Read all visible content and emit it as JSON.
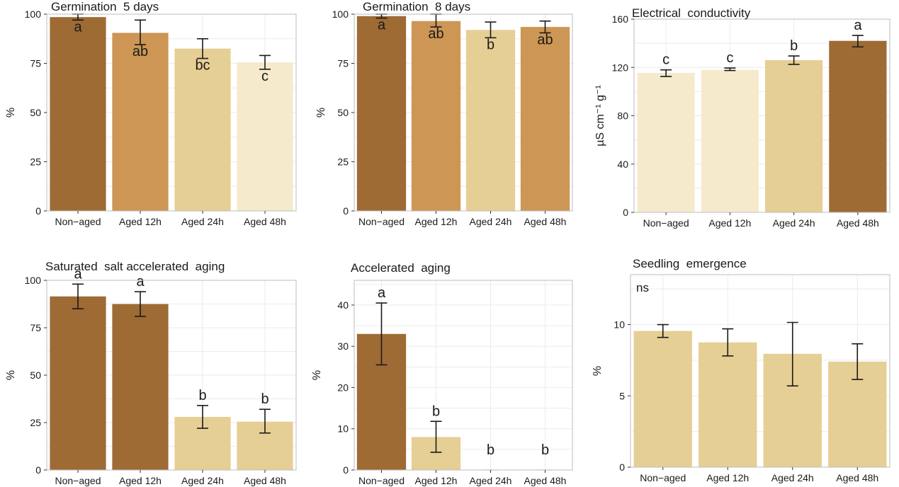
{
  "chart_data": [
    {
      "type": "bar",
      "title": "Germination  5 days",
      "xlabel": "",
      "ylabel": "%",
      "ylim": [
        0,
        100
      ],
      "yticks": [
        "0",
        "25",
        "50",
        "75",
        "100"
      ],
      "categories": [
        "Non−aged",
        "Aged 12h",
        "Aged 24h",
        "Aged 48h"
      ],
      "values": [
        98.5,
        90.5,
        82.5,
        75.5
      ],
      "errors": [
        [
          97,
          100
        ],
        [
          84.5,
          97
        ],
        [
          77.5,
          87.5
        ],
        [
          72,
          79
        ]
      ],
      "letters": [
        "a",
        "ab",
        "bc",
        "c"
      ],
      "colors": [
        "#9e6b35",
        "#cd9655",
        "#e6cf95",
        "#f6eacd"
      ]
    },
    {
      "type": "bar",
      "title": "Germination  8 days",
      "xlabel": "",
      "ylabel": "%",
      "ylim": [
        0,
        100
      ],
      "yticks": [
        "0",
        "25",
        "50",
        "75",
        "100"
      ],
      "categories": [
        "Non−aged",
        "Aged 12h",
        "Aged 24h",
        "Aged 48h"
      ],
      "values": [
        99,
        96.5,
        92,
        93.5
      ],
      "errors": [
        [
          98,
          100
        ],
        [
          93.5,
          100
        ],
        [
          88,
          96
        ],
        [
          90.5,
          96.5
        ]
      ],
      "letters": [
        "a",
        "ab",
        "b",
        "ab"
      ],
      "colors": [
        "#9e6b35",
        "#cd9655",
        "#e6cf95",
        "#cd9655"
      ]
    },
    {
      "type": "bar",
      "title": "Electrical  conductivity",
      "xlabel": "",
      "ylabel": "µS cm⁻¹ g⁻¹",
      "ylim": [
        0,
        160
      ],
      "yticks": [
        "0",
        "40",
        "80",
        "120",
        "160"
      ],
      "categories": [
        "Non−aged",
        "Aged 12h",
        "Aged 24h",
        "Aged 48h"
      ],
      "values": [
        115.5,
        118,
        126,
        142
      ],
      "errors": [
        [
          112.5,
          118
        ],
        [
          117.5,
          119.5
        ],
        [
          122.5,
          129.5
        ],
        [
          137,
          146.5
        ]
      ],
      "letters": [
        "c",
        "c",
        "b",
        "a"
      ],
      "colors": [
        "#f6eacd",
        "#f6eacd",
        "#e6cf95",
        "#9e6b35"
      ]
    },
    {
      "type": "bar",
      "title": "Saturated  salt accelerated  aging",
      "xlabel": "",
      "ylabel": "%",
      "ylim": [
        0,
        100
      ],
      "yticks": [
        "0",
        "25",
        "50",
        "75",
        "100"
      ],
      "categories": [
        "Non−aged",
        "Aged 12h",
        "Aged 24h",
        "Aged 48h"
      ],
      "values": [
        91.5,
        87.5,
        28,
        25.5
      ],
      "errors": [
        [
          85,
          98
        ],
        [
          81,
          94
        ],
        [
          22,
          34
        ],
        [
          19.5,
          32
        ]
      ],
      "letters": [
        "a",
        "a",
        "b",
        "b"
      ],
      "colors": [
        "#9e6b35",
        "#9e6b35",
        "#e6cf95",
        "#e6cf95"
      ]
    },
    {
      "type": "bar",
      "title": "Accelerated  aging",
      "xlabel": "",
      "ylabel": "%",
      "ylim": [
        0,
        46
      ],
      "yticks": [
        "0",
        "10",
        "20",
        "30",
        "40"
      ],
      "categories": [
        "Non−aged",
        "Aged 12h",
        "Aged 24h",
        "Aged 48h"
      ],
      "values": [
        33,
        8,
        0,
        0
      ],
      "errors": [
        [
          25.5,
          40.5
        ],
        [
          4.3,
          11.8
        ],
        null,
        null
      ],
      "letters": [
        "a",
        "b",
        "b",
        "b"
      ],
      "colors": [
        "#9e6b35",
        "#e6cf95",
        "#e6cf95",
        "#e6cf95"
      ]
    },
    {
      "type": "bar",
      "title": "Seedling  emergence",
      "xlabel": "",
      "ylabel": "%",
      "ylim": [
        0,
        13.5
      ],
      "yticks": [
        "0",
        "5",
        "10"
      ],
      "categories": [
        "Non−aged",
        "Aged 12h",
        "Aged 24h",
        "Aged 48h"
      ],
      "values": [
        9.55,
        8.75,
        7.95,
        7.4
      ],
      "errors": [
        [
          9.1,
          10.0
        ],
        [
          7.8,
          9.7
        ],
        [
          5.7,
          10.15
        ],
        [
          6.15,
          8.65
        ]
      ],
      "letters": [],
      "annotation": "ns",
      "colors": [
        "#e6cf95",
        "#e6cf95",
        "#e6cf95",
        "#e6cf95"
      ]
    }
  ]
}
